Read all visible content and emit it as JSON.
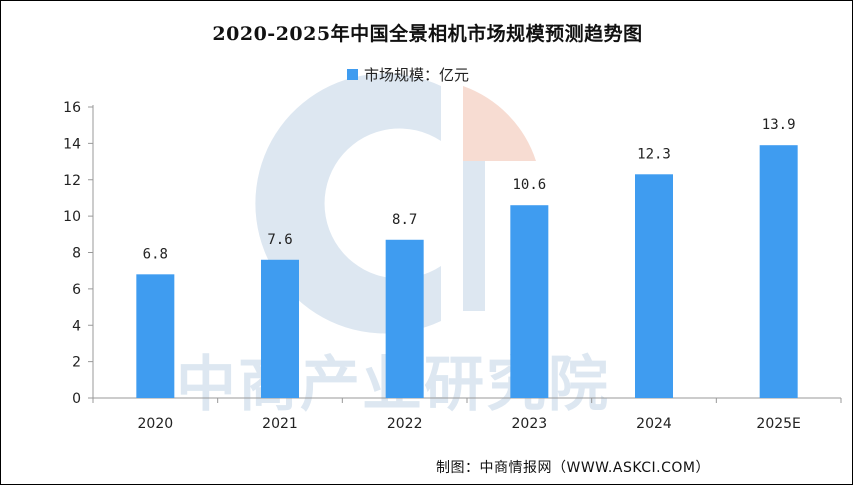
{
  "watermark": {
    "text": "中商产业研究院"
  },
  "chart_data": {
    "type": "bar",
    "title": "2020-2025年中国全景相机市场规模预测趋势图",
    "categories": [
      "2020",
      "2021",
      "2022",
      "2023",
      "2024",
      "2025E"
    ],
    "series": [
      {
        "name": "市场规模：亿元",
        "values": [
          6.8,
          7.6,
          8.7,
          10.6,
          12.3,
          13.9
        ],
        "color": "#3f9cf0"
      }
    ],
    "yticks": [
      "0",
      "2",
      "4",
      "6",
      "8",
      "10",
      "12",
      "14",
      "16"
    ],
    "ylim": [
      0,
      16
    ],
    "xlabel": "",
    "ylabel": "",
    "grid": false,
    "legend": "top-center",
    "source": "制图：中商情报网（WWW.ASKCI.COM）"
  }
}
